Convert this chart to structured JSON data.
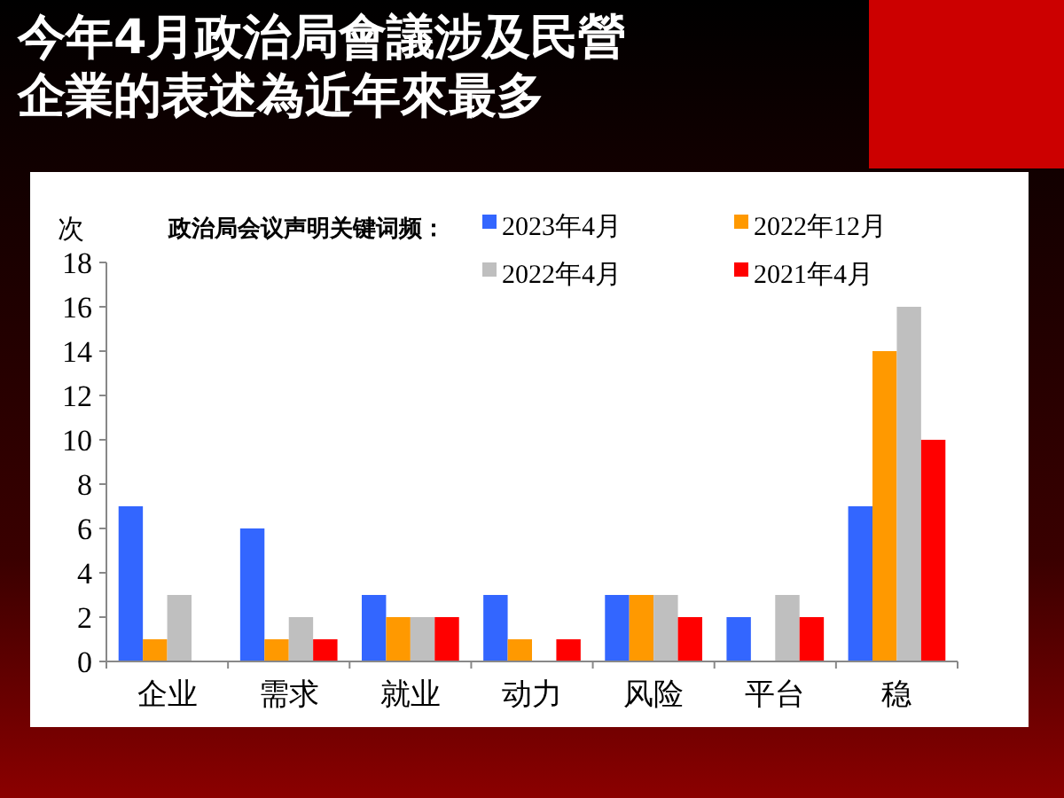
{
  "chart_data": {
    "type": "bar",
    "title": "今年4月政治局會議涉及民營企業的表述為近年來最多",
    "ylabel": "次",
    "legend_title": "政治局会议声明关键词频：",
    "categories": [
      "企业",
      "需求",
      "就业",
      "动力",
      "风险",
      "平台",
      "稳"
    ],
    "series": [
      {
        "name": "2023年4月",
        "color": "#3366ff",
        "values": [
          7,
          6,
          3,
          3,
          3,
          2,
          7
        ]
      },
      {
        "name": "2022年12月",
        "color": "#ff9900",
        "values": [
          1,
          1,
          2,
          1,
          3,
          0,
          14
        ]
      },
      {
        "name": "2022年4月",
        "color": "#bfbfbf",
        "values": [
          3,
          2,
          2,
          0,
          3,
          3,
          16
        ]
      },
      {
        "name": "2021年4月",
        "color": "#ff0000",
        "values": [
          0,
          1,
          2,
          1,
          2,
          2,
          10
        ]
      }
    ],
    "ylim": [
      0,
      18
    ],
    "yticks": [
      0,
      2,
      4,
      6,
      8,
      10,
      12,
      14,
      16,
      18
    ],
    "grid": false,
    "legend": "top"
  }
}
